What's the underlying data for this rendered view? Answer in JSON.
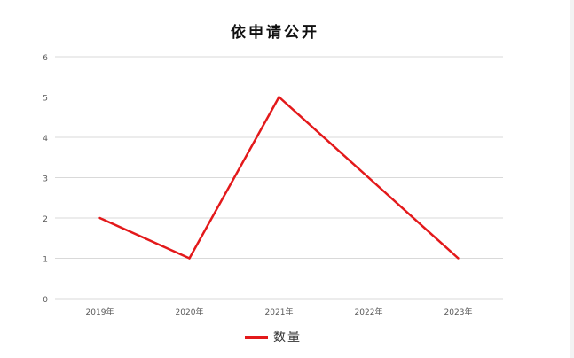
{
  "chart_data": {
    "type": "line",
    "title": "依申请公开",
    "categories": [
      "2019年",
      "2020年",
      "2021年",
      "2022年",
      "2023年"
    ],
    "series": [
      {
        "name": "数量",
        "values": [
          2,
          1,
          5,
          3,
          1
        ],
        "color": "#e3191b"
      }
    ],
    "xlabel": "",
    "ylabel": "",
    "ylim": [
      0,
      6
    ],
    "yticks": [
      "0",
      "1",
      "2",
      "3",
      "4",
      "5",
      "6"
    ],
    "grid": true,
    "legend": "bottom"
  }
}
